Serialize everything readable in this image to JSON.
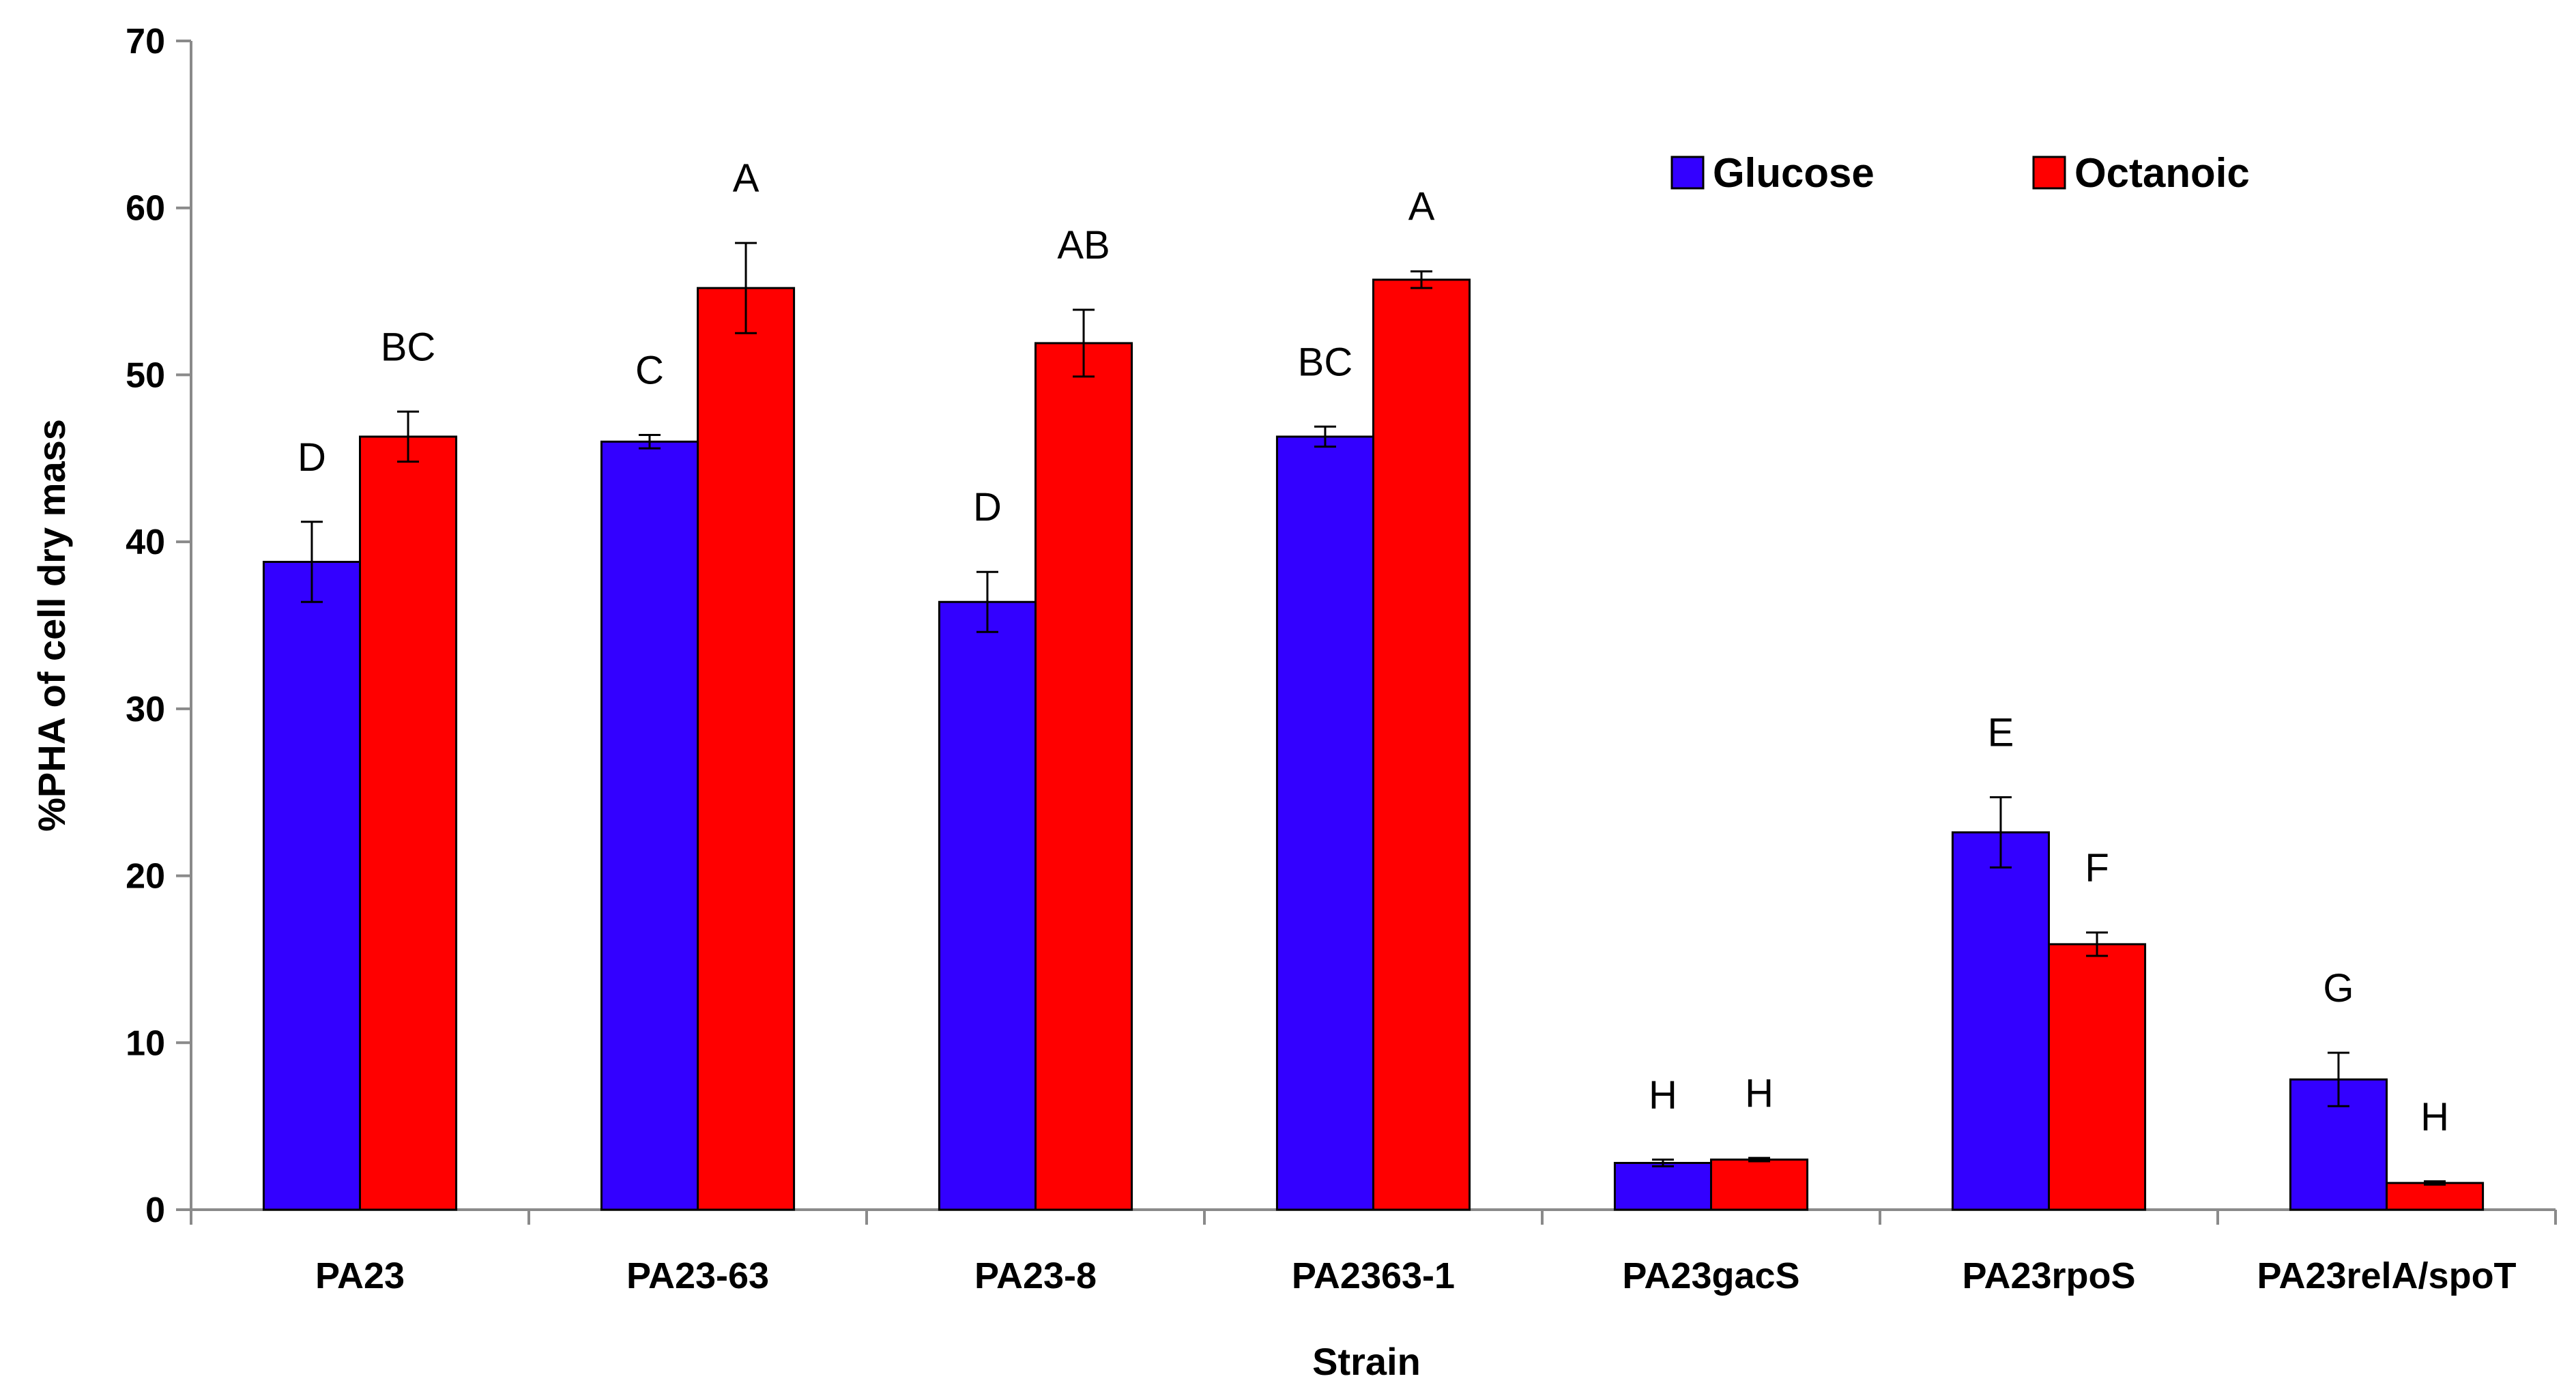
{
  "chart_data": {
    "type": "bar",
    "title": "",
    "xlabel": "Strain",
    "ylabel": "%PHA of cell dry mass",
    "ylim": [
      0,
      70
    ],
    "yticks": [
      0,
      10,
      20,
      30,
      40,
      50,
      60,
      70
    ],
    "grid": false,
    "legend_position": "top-right",
    "categories": [
      "PA23",
      "PA23-63",
      "PA23-8",
      "PA2363-1",
      "PA23gacS",
      "PA23rpoS",
      "PA23relA/spoT"
    ],
    "series": [
      {
        "name": "Glucose",
        "color": "#3300ff",
        "values": [
          38.8,
          46.0,
          36.4,
          46.3,
          2.8,
          22.6,
          7.8
        ],
        "errors": [
          2.4,
          0.4,
          1.8,
          0.6,
          0.2,
          2.1,
          1.6
        ],
        "labels": [
          "D",
          "C",
          "D",
          "BC",
          "H",
          "E",
          "G"
        ]
      },
      {
        "name": "Octanoic",
        "color": "#ff0000",
        "values": [
          46.3,
          55.2,
          51.9,
          55.7,
          3.0,
          15.9,
          1.6
        ],
        "errors": [
          1.5,
          2.7,
          2.0,
          0.5,
          0.1,
          0.7,
          0.1
        ],
        "labels": [
          "BC",
          "A",
          "AB",
          "A",
          "H",
          "F",
          "H"
        ]
      }
    ]
  }
}
